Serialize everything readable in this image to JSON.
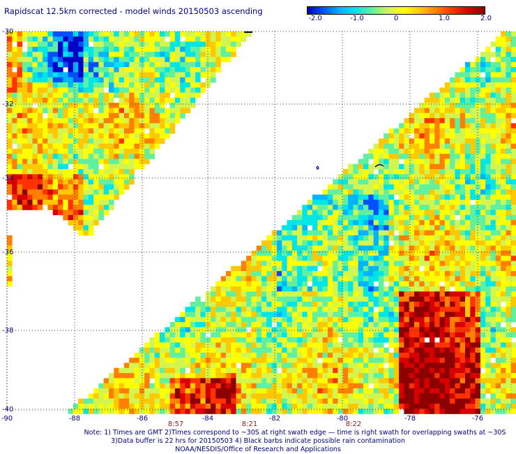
{
  "title": "Rapidscat 12.5km corrected - model winds 20150503 ascending",
  "colorbar": {
    "ticks": [
      "-2.0",
      "-1.0",
      "0",
      "1.0",
      "2.0"
    ],
    "range": [
      -2.0,
      2.0
    ]
  },
  "axes": {
    "lon_labels": [
      "-90",
      "-88",
      "-86",
      "-84",
      "-82",
      "-80",
      "-78",
      "-76"
    ],
    "lat_labels": [
      "-30",
      "-32",
      "-34",
      "-36",
      "-38",
      "-40"
    ]
  },
  "times": [
    "8:57",
    "8:21",
    "8:22"
  ],
  "notes": {
    "line1": "Note: 1) Times are GMT 2)Times correspond to ~30S at right swath edge — time is right swath for overlapping swaths at ~30S",
    "line2": "3)Data buffer is 22 hrs for 20150503 4) Black barbs indicate possible rain contamination",
    "line3": "NOAA/NESDIS/Office of Research and Applications"
  },
  "colors": {
    "text": "#000080",
    "time_labels": "#8b1a1a",
    "grid": "#333333",
    "palette": [
      "#0000c8",
      "#0050ff",
      "#00b4ff",
      "#00e6e6",
      "#60f0a0",
      "#d2f550",
      "#ffff00",
      "#ffc800",
      "#ff8000",
      "#ff3200",
      "#d70000",
      "#8c0000"
    ]
  }
}
